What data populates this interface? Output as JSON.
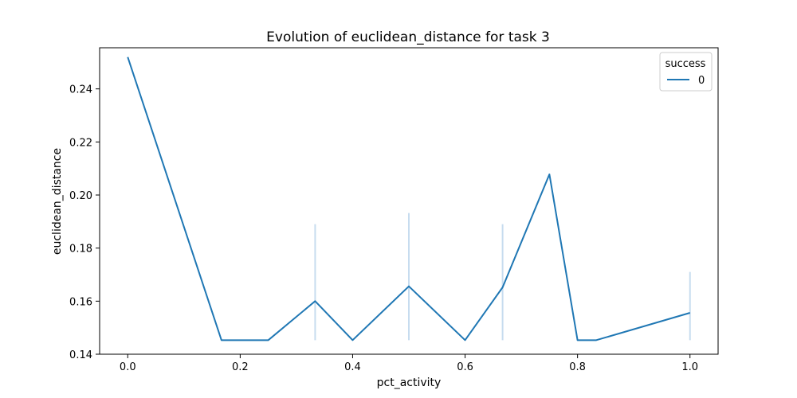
{
  "chart_data": {
    "type": "line",
    "title": "Evolution of euclidean_distance for task 3",
    "xlabel": "pct_activity",
    "ylabel": "euclidean_distance",
    "xlim": [
      -0.05,
      1.05
    ],
    "ylim": [
      0.14,
      0.2555
    ],
    "x_ticks": [
      0.0,
      0.2,
      0.4,
      0.6,
      0.8,
      1.0
    ],
    "x_tick_labels": [
      "0.0",
      "0.2",
      "0.4",
      "0.6",
      "0.8",
      "1.0"
    ],
    "y_ticks": [
      0.14,
      0.16,
      0.18,
      0.2,
      0.22,
      0.24
    ],
    "y_tick_labels": [
      "0.14",
      "0.16",
      "0.18",
      "0.20",
      "0.22",
      "0.24"
    ],
    "grid": false,
    "legend": {
      "title": "success",
      "placement": "top-right",
      "entries": [
        "0"
      ]
    },
    "series": [
      {
        "name": "0",
        "color": "#1f77b4",
        "x": [
          0.0,
          0.1667,
          0.25,
          0.3333,
          0.4,
          0.5,
          0.6,
          0.6667,
          0.75,
          0.8,
          0.8333,
          1.0
        ],
        "y": [
          0.252,
          0.1453,
          0.1453,
          0.16,
          0.1453,
          0.1656,
          0.1453,
          0.1652,
          0.2078,
          0.1453,
          0.1453,
          0.1556
        ]
      }
    ],
    "error_bars": [
      {
        "x": 0.3333,
        "low": 0.1453,
        "high": 0.189
      },
      {
        "x": 0.5,
        "low": 0.1453,
        "high": 0.1932
      },
      {
        "x": 0.6667,
        "low": 0.1453,
        "high": 0.189
      },
      {
        "x": 1.0,
        "low": 0.1453,
        "high": 0.171
      }
    ],
    "error_bar_color": "#c7dcef"
  }
}
